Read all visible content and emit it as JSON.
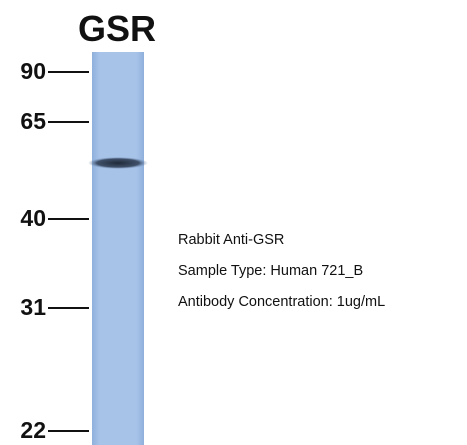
{
  "title": "GSR",
  "markers": [
    90,
    65,
    40,
    31,
    22
  ],
  "info": [
    "Rabbit Anti-GSR",
    "Sample Type: Human 721_B",
    "Antibody Concentration: 1ug/mL"
  ]
}
